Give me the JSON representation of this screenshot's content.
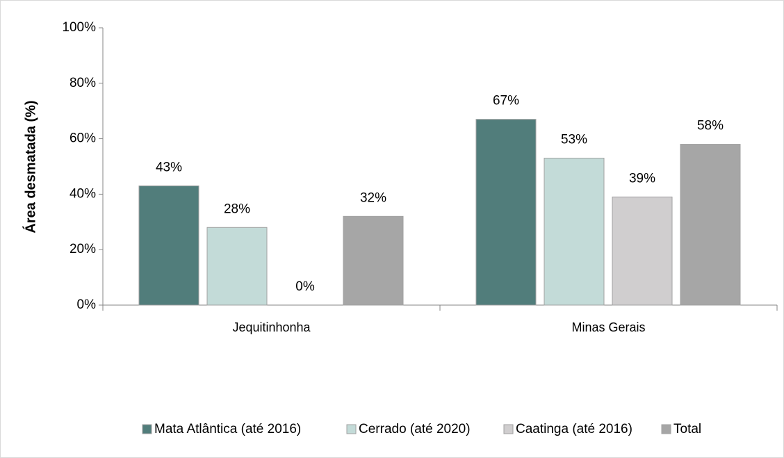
{
  "chart_data": {
    "type": "bar",
    "y_label": "Área desmatada (%)",
    "categories": [
      "Jequitinhonha",
      "Minas Gerais"
    ],
    "series": [
      {
        "name": "Mata Atlântica (até 2016)",
        "color": "#517d7b",
        "values": [
          43,
          67
        ],
        "value_labels": [
          "43%",
          "67%"
        ]
      },
      {
        "name": "Cerrado (até 2020)",
        "color": "#c3dbd8",
        "values": [
          28,
          53
        ],
        "value_labels": [
          "28%",
          "53%"
        ]
      },
      {
        "name": "Caatinga (até 2016)",
        "color": "#d0cecf",
        "values": [
          0,
          39
        ],
        "value_labels": [
          "0%",
          "39%"
        ]
      },
      {
        "name": "Total",
        "color": "#a6a6a6",
        "values": [
          32,
          58
        ],
        "value_labels": [
          "32%",
          "58%"
        ]
      }
    ],
    "ylim": [
      0,
      100
    ],
    "yticks": [
      {
        "value": 0,
        "label": "0%"
      },
      {
        "value": 20,
        "label": "20%"
      },
      {
        "value": 40,
        "label": "40%"
      },
      {
        "value": 60,
        "label": "60%"
      },
      {
        "value": 80,
        "label": "80%"
      },
      {
        "value": 100,
        "label": "100%"
      }
    ],
    "legend": "bottom"
  }
}
